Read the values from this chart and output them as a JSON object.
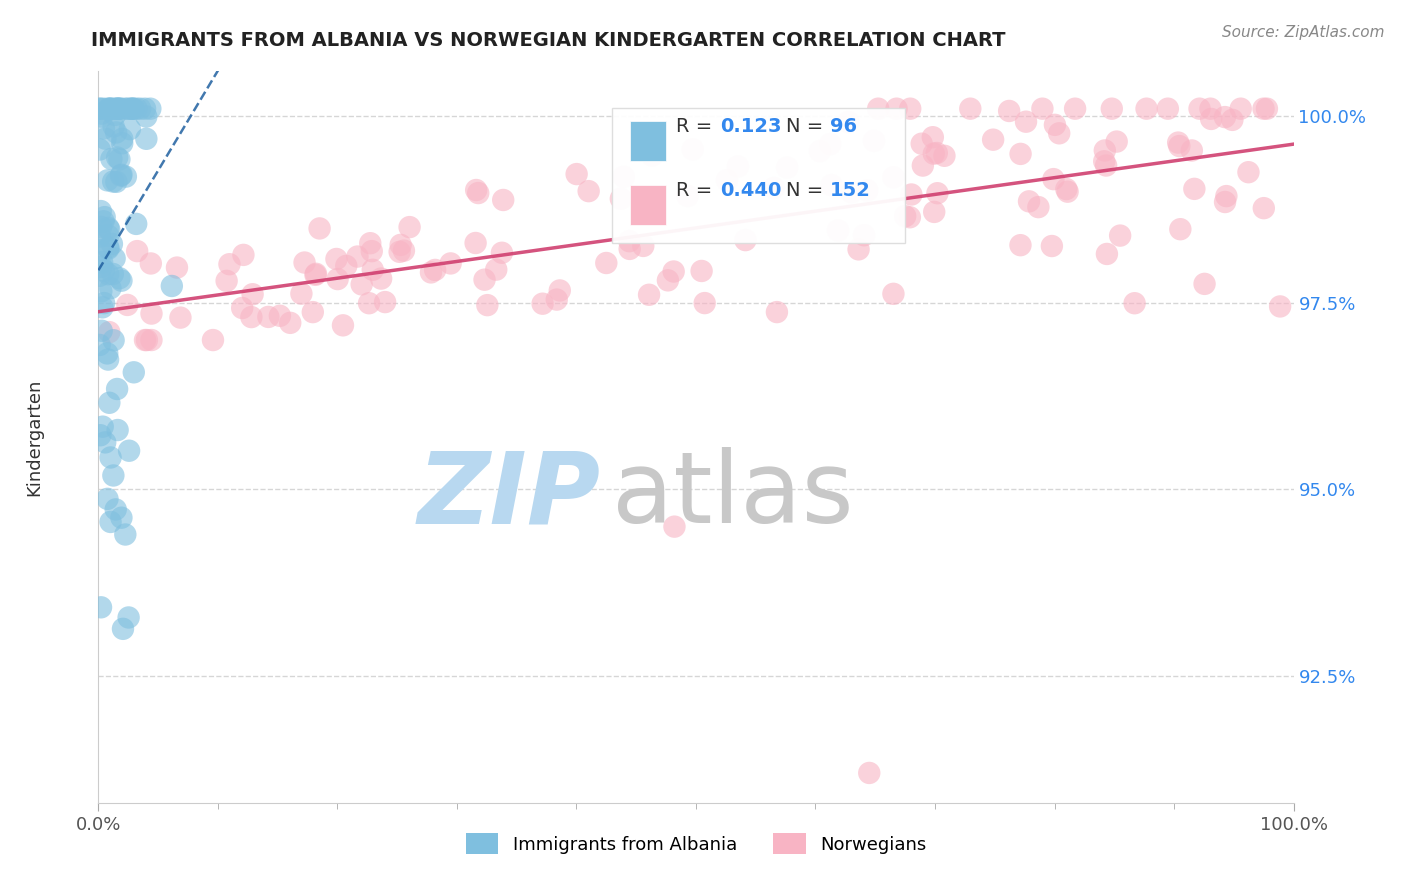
{
  "title": "IMMIGRANTS FROM ALBANIA VS NORWEGIAN KINDERGARTEN CORRELATION CHART",
  "source_text": "Source: ZipAtlas.com",
  "ylabel": "Kindergarten",
  "ytick_labels": [
    "92.5%",
    "95.0%",
    "97.5%",
    "100.0%"
  ],
  "ytick_values": [
    0.925,
    0.95,
    0.975,
    1.0
  ],
  "ymin": 0.908,
  "ymax": 1.006,
  "xmin": 0.0,
  "xmax": 1.0,
  "color_blue": "#7fbfdf",
  "color_pink": "#f8b4c4",
  "color_blue_line": "#2060a0",
  "color_pink_line": "#d04070",
  "watermark_zip": "ZIP",
  "watermark_atlas": "atlas",
  "watermark_color_zip": "#b8d8f0",
  "watermark_color_atlas": "#c8c8c8"
}
